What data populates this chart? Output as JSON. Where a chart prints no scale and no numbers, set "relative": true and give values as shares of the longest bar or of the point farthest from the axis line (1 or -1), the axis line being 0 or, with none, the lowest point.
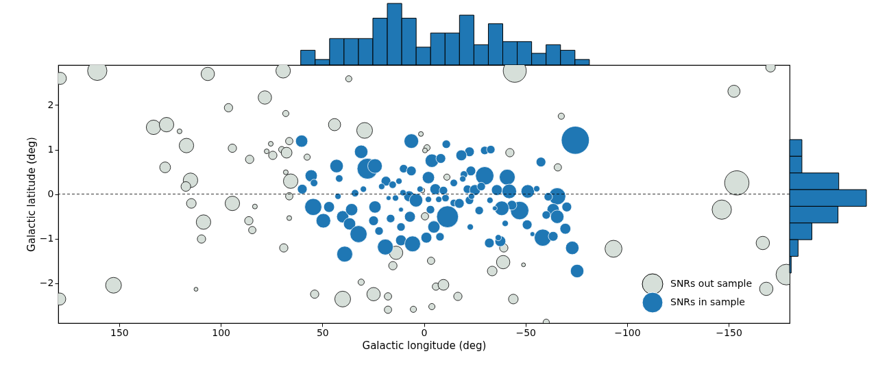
{
  "chart_data": [
    {
      "type": "bar",
      "relative": true,
      "color": "#1f77b4",
      "categories": [
        null,
        null,
        null,
        null,
        null,
        null,
        null,
        null,
        null,
        null,
        null,
        null,
        null,
        null,
        null,
        null,
        null,
        null,
        null,
        null
      ],
      "values": [
        0.24,
        0.09,
        0.43,
        0.43,
        0.43,
        0.76,
        1,
        0.76,
        0.29,
        0.52,
        0.52,
        0.81,
        0.33,
        0.67,
        0.38,
        0.38,
        0.19,
        0.33,
        0.24,
        0.09
      ]
    },
    {
      "type": "bubble",
      "xlabel": "Galactic longitude (deg)",
      "ylabel": "Galactic latitude (deg)",
      "xlim": [
        180,
        -180
      ],
      "ylim": [
        -2.9,
        2.9
      ],
      "xticks": [
        150,
        100,
        50,
        0,
        {
          "value": -50,
          "label": "−50"
        },
        {
          "value": -100,
          "label": "−100"
        },
        {
          "value": -150,
          "label": "−150"
        }
      ],
      "yticks": [
        {
          "value": -2,
          "label": "−2"
        },
        {
          "value": -1,
          "label": "−1"
        },
        0,
        1,
        2
      ],
      "grid": false,
      "legend": "bottom right",
      "ref_lines": [
        {
          "axis": "y",
          "value": 0,
          "color": "#000000",
          "line_style": "dashed"
        }
      ],
      "series": [
        {
          "name": "SNRs out sample",
          "color": "#d6dfd9",
          "x": [
            179,
            160.8,
            106.4,
            69.3,
            78.3,
            96.2,
            68,
            133.1,
            126.7,
            120.3,
            116.9,
            94.3,
            85.8,
            75.4,
            77.4,
            74.4,
            70,
            67.6,
            66.3,
            127.4,
            114.9,
            117.2,
            68,
            65.6,
            114.5,
            94.3,
            83.2,
            66.3,
            108.5,
            86.2,
            84.5,
            66.3,
            109.5,
            69,
            152.8,
            112.2,
            179.3,
            44,
            29.2,
            57.5,
            -1.5,
            -0.5,
            0.8,
            -0.5,
            13.7,
            15.3,
            -3.5,
            -42.3,
            -65.9,
            -11.3,
            -39,
            -33.6,
            -49,
            -39.3,
            -5.9,
            -9.6,
            -16.7,
            -3.9,
            5.2,
            17.7,
            17.7,
            24.8,
            30.9,
            40,
            53.8,
            -44,
            -60.2,
            -44.7,
            37,
            1.5,
            -67.6,
            -152.6,
            -170.6,
            -154,
            -146.6,
            -93.3,
            -166.8,
            -178.4,
            -168.5
          ],
          "values": [
            2.6,
            2.77,
            2.7,
            2.77,
            2.17,
            1.94,
            1.81,
            1.5,
            1.56,
            1.41,
            1.09,
            1.03,
            0.78,
            1.13,
            0.96,
            0.87,
            1.0,
            0.93,
            1.19,
            0.6,
            0.31,
            0.17,
            0.49,
            0.29,
            -0.21,
            -0.21,
            -0.28,
            -0.05,
            -0.63,
            -0.6,
            -0.81,
            -0.54,
            -1.01,
            -1.21,
            -2.05,
            -2.14,
            -2.36,
            1.56,
            1.43,
            0.83,
            1.04,
            0.98,
            0.08,
            -0.5,
            -1.32,
            -1.61,
            -1.5,
            0.93,
            0.6,
            0.38,
            -1.53,
            -1.73,
            -1.59,
            -1.21,
            -2.08,
            -2.04,
            -2.3,
            -2.53,
            -2.59,
            -2.6,
            -2.3,
            -2.25,
            -1.98,
            -2.36,
            -2.25,
            -2.36,
            -2.88,
            2.77,
            2.59,
            1.35,
            1.75,
            2.31,
            2.85,
            0.25,
            -0.35,
            -1.23,
            -1.1,
            -1.81,
            -2.13
          ],
          "sizes": [
            0.19,
            0.48,
            0.23,
            0.27,
            0.23,
            0.09,
            0.05,
            0.27,
            0.27,
            0.03,
            0.27,
            0.09,
            0.09,
            0.03,
            0.03,
            0.09,
            0.05,
            0.15,
            0.07,
            0.15,
            0.27,
            0.12,
            0.03,
            0.27,
            0.12,
            0.27,
            0.03,
            0.07,
            0.27,
            0.09,
            0.07,
            0.03,
            0.09,
            0.09,
            0.32,
            0.02,
            0.19,
            0.19,
            0.32,
            0.05,
            0.05,
            0.03,
            0.03,
            0.07,
            0.23,
            0.09,
            0.07,
            0.09,
            0.07,
            0.05,
            0.23,
            0.12,
            0.02,
            0.09,
            0.07,
            0.15,
            0.09,
            0.05,
            0.05,
            0.07,
            0.07,
            0.23,
            0.05,
            0.32,
            0.09,
            0.12,
            0.05,
            0.68,
            0.05,
            0.03,
            0.05,
            0.19,
            0.12,
            0.76,
            0.48,
            0.37,
            0.23,
            0.55,
            0.23
          ]
        },
        {
          "name": "SNRs in sample",
          "color": "#1f77b4",
          "x": [
            60.2,
            6.2,
            30.9,
            43,
            55.5,
            54.1,
            41.7,
            27.8,
            24.1,
            59.9,
            42.3,
            54.5,
            49.5,
            46.7,
            40,
            35.6,
            36.6,
            32.2,
            33.9,
            29.8,
            24.1,
            24.8,
            22.1,
            16.4,
            18.7,
            20.8,
            15.4,
            12.3,
            14,
            11.3,
            11.3,
            10,
            6.2,
            7.3,
            3.9,
            6.9,
            11.3,
            5.6,
            19,
            39,
            -1.2,
            -2.2,
            -3.9,
            -3.2,
            -4.9,
            1.9,
            10.3,
            17.4,
            -11,
            -22.4,
            -18.4,
            -29.9,
            -32.9,
            -8.3,
            -23.1,
            -19.7,
            -19.1,
            -29.9,
            -41,
            -14.7,
            -21.4,
            -25.1,
            -28.2,
            -35.9,
            -42,
            -51.1,
            -55.5,
            -65.6,
            -61.2,
            -70.3,
            -63.6,
            -60.2,
            -65.6,
            -69.6,
            -73,
            -75.4,
            -58.5,
            -63.6,
            -53.4,
            -50.8,
            -47.1,
            -43.3,
            -38.3,
            -40,
            -32.5,
            -34.9,
            -27.2,
            -22.4,
            -23.4,
            -11.6,
            -4.9,
            -7.9,
            -22.8,
            -32.2,
            -37.6,
            -36.6,
            -14.7,
            -17.4,
            -10.6,
            -7.3,
            -2.2,
            -5.6,
            -9.6,
            -74.5,
            -57.6
          ],
          "values": [
            1.19,
            1.19,
            0.95,
            0.63,
            0.41,
            0.25,
            0.35,
            0.57,
            0.63,
            0.11,
            -0.05,
            -0.29,
            -0.6,
            -0.29,
            -0.51,
            -0.35,
            -0.67,
            -0.9,
            0.02,
            0.11,
            -0.29,
            -0.6,
            -0.83,
            -0.55,
            0.29,
            0.17,
            0.21,
            0.29,
            -0.09,
            -0.35,
            -0.74,
            0.57,
            0.52,
            -0.05,
            -0.14,
            -0.51,
            -1.04,
            -1.12,
            -1.19,
            -1.35,
            -0.98,
            0.37,
            0.75,
            -0.35,
            -0.7,
            0.11,
            0.03,
            -0.09,
            1.12,
            0.95,
            0.87,
            0.98,
            1.0,
            0.8,
            0.52,
            0.44,
            0.34,
            0.41,
            0.38,
            0.25,
            0.11,
            0.09,
            0.17,
            0.09,
            0.06,
            0.06,
            0.12,
            -0.05,
            -0.06,
            -0.29,
            -0.35,
            -0.47,
            -0.51,
            -0.78,
            -1.21,
            -1.73,
            -0.98,
            -0.95,
            -0.9,
            -0.69,
            -0.37,
            -0.25,
            -0.32,
            -0.66,
            -0.14,
            -0.32,
            -0.37,
            -0.14,
            -0.05,
            -0.51,
            -0.74,
            -0.96,
            -0.74,
            -1.1,
            -1.06,
            -0.98,
            -0.2,
            -0.21,
            -0.09,
            -0.12,
            -0.12,
            0.11,
            0.08,
            1.21,
            0.72
          ],
          "sizes": [
            0.19,
            0.27,
            0.23,
            0.23,
            0.19,
            0.07,
            0.07,
            0.55,
            0.27,
            0.12,
            0.05,
            0.37,
            0.27,
            0.15,
            0.19,
            0.19,
            0.19,
            0.37,
            0.07,
            0.05,
            0.19,
            0.12,
            0.09,
            0.09,
            0.12,
            0.05,
            0.07,
            0.05,
            0.05,
            0.03,
            0.09,
            0.09,
            0.12,
            0.15,
            0.23,
            0.15,
            0.15,
            0.32,
            0.32,
            0.32,
            0.15,
            0.19,
            0.23,
            0.09,
            0.12,
            0.05,
            0.05,
            0.03,
            0.09,
            0.12,
            0.15,
            0.09,
            0.09,
            0.12,
            0.12,
            0.07,
            0.05,
            0.43,
            0.32,
            0.07,
            0.09,
            0.15,
            0.09,
            0.15,
            0.27,
            0.23,
            0.05,
            0.37,
            0.09,
            0.12,
            0.19,
            0.09,
            0.23,
            0.15,
            0.23,
            0.23,
            0.37,
            0.12,
            0.03,
            0.12,
            0.43,
            0.12,
            0.27,
            0.05,
            0.05,
            0.03,
            0.09,
            0.09,
            0.05,
            0.61,
            0.19,
            0.09,
            0.05,
            0.12,
            0.15,
            0.05,
            0.07,
            0.12,
            0.07,
            0.05,
            0.05,
            0.15,
            0.09,
            1,
            0.12
          ]
        }
      ]
    },
    {
      "type": "bar",
      "relative": true,
      "orientation": "horizontal",
      "color": "#1f77b4",
      "categories": [
        null,
        null,
        null,
        null,
        null,
        null,
        null,
        null
      ],
      "values": [
        0.16,
        0.16,
        0.64,
        1,
        0.63,
        0.29,
        0.11,
        0.02
      ]
    }
  ]
}
